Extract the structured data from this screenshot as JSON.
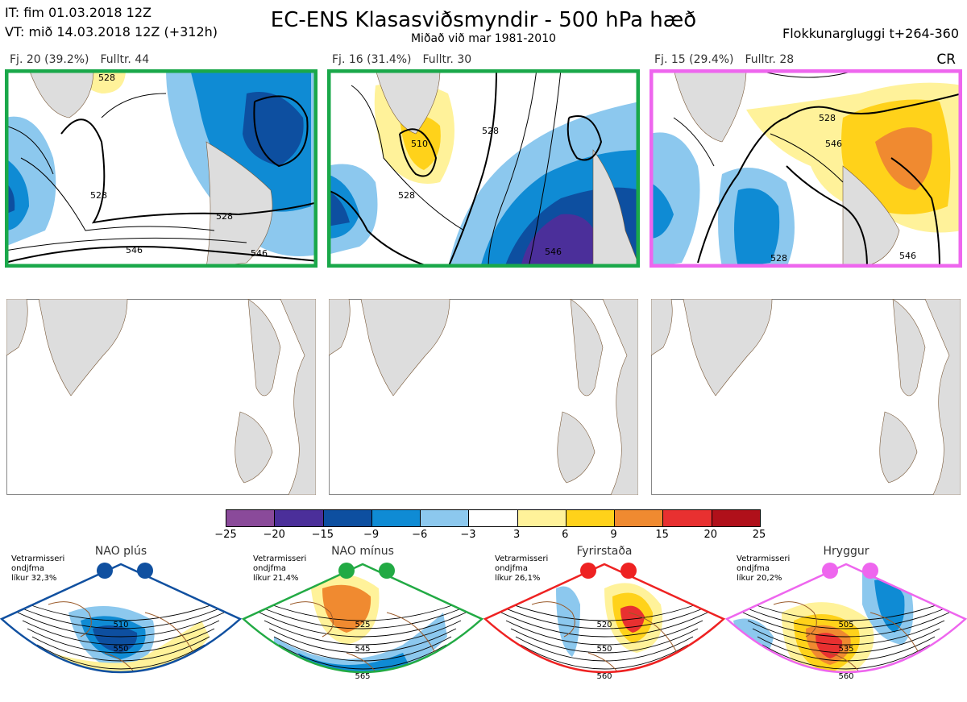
{
  "header": {
    "it": "IT: fim 01.03.2018 12Z",
    "vt": "VT: mið 14.03.2018 12Z  (+312h)",
    "title": "EC-ENS Klasasviðsmyndir - 500 hPa hæð",
    "subtitle": "Miðað við mar 1981-2010",
    "right": "Flokkunargluggi t+264-360"
  },
  "clusters": [
    {
      "count_label": "Fj. 20 (39.2%)",
      "rep_label": "Fulltr. 44",
      "border_color": "#1aa84a",
      "contour_labels": [
        "528",
        "528",
        "546",
        "546",
        "528"
      ]
    },
    {
      "count_label": "Fj. 16 (31.4%)",
      "rep_label": "Fulltr. 30",
      "border_color": "#1aa84a",
      "contour_labels": [
        "510",
        "528",
        "546",
        "528"
      ]
    },
    {
      "count_label": "Fj. 15 (29.4%)",
      "rep_label": "Fulltr. 28",
      "border_color": "#ee66ee",
      "contour_labels": [
        "528",
        "546",
        "546",
        "528"
      ]
    }
  ],
  "cr_label": "CR",
  "colorbar": {
    "ticks": [
      "−25",
      "−20",
      "−15",
      "−9",
      "−6",
      "−3",
      "3",
      "6",
      "9",
      "15",
      "20",
      "25"
    ],
    "colors": [
      "#8a4a9a",
      "#4b2f9a",
      "#0d4fa0",
      "#0f8bd4",
      "#8cc8ee",
      "#ffffff",
      "#fff29a",
      "#ffd21a",
      "#f08a30",
      "#e83030",
      "#b0101a"
    ]
  },
  "regimes": [
    {
      "name": "NAO plús",
      "line1": "Vetrarmisseri",
      "line2": "ondjfma",
      "line3": "líkur 32,3%",
      "color": "#1050a0",
      "labels": [
        "510",
        "550"
      ]
    },
    {
      "name": "NAO mínus",
      "line1": "Vetrarmisseri",
      "line2": "ondjfma",
      "line3": "líkur 21,4%",
      "color": "#22aa44",
      "labels": [
        "525",
        "545",
        "565"
      ]
    },
    {
      "name": "Fyrirstaða",
      "line1": "Vetrarmisseri",
      "line2": "ondjfma",
      "line3": "líkur 26,1%",
      "color": "#ee2222",
      "labels": [
        "520",
        "550",
        "560"
      ]
    },
    {
      "name": "Hryggur",
      "line1": "Vetrarmisseri",
      "line2": "ondjfma",
      "line3": "líkur 20,2%",
      "color": "#ee66ee",
      "labels": [
        "505",
        "535",
        "560"
      ]
    }
  ]
}
